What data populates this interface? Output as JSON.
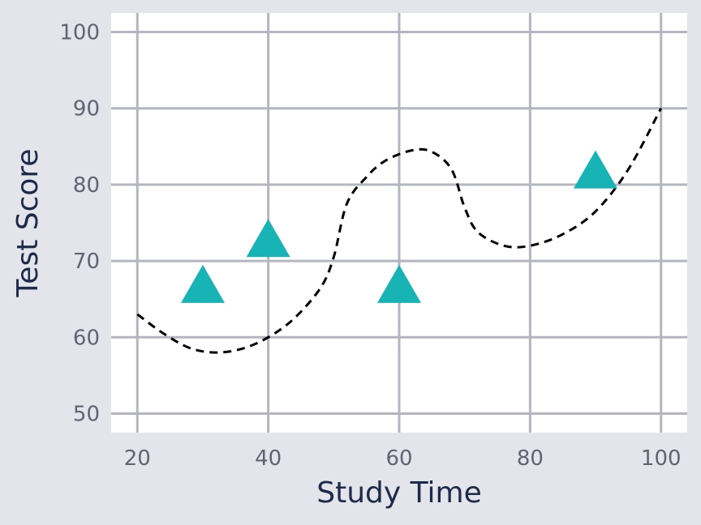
{
  "chart_data": {
    "type": "scatter",
    "title": "",
    "xlabel": "Study Time",
    "ylabel": "Test Score",
    "xlim": [
      16,
      104
    ],
    "ylim": [
      47.5,
      102.5
    ],
    "xticks": [
      20,
      40,
      60,
      80,
      100
    ],
    "yticks": [
      50,
      60,
      70,
      80,
      90,
      100
    ],
    "grid": true,
    "legend": "none",
    "series": [
      {
        "marker": "triangle",
        "color": "#17b3b5",
        "points": [
          {
            "x": 30,
            "y": 66.5
          },
          {
            "x": 40,
            "y": 72.5
          },
          {
            "x": 60,
            "y": 66.5
          },
          {
            "x": 90,
            "y": 81.5
          }
        ]
      }
    ],
    "curve": {
      "style": "dashed",
      "color": "#000000",
      "points": [
        {
          "x": 20,
          "y": 63
        },
        {
          "x": 24,
          "y": 60.5
        },
        {
          "x": 28,
          "y": 58.6
        },
        {
          "x": 32,
          "y": 58
        },
        {
          "x": 36,
          "y": 58.5
        },
        {
          "x": 40,
          "y": 60
        },
        {
          "x": 44,
          "y": 62.5
        },
        {
          "x": 48,
          "y": 66.5
        },
        {
          "x": 50,
          "y": 70.5
        },
        {
          "x": 52,
          "y": 77.5
        },
        {
          "x": 55,
          "y": 81
        },
        {
          "x": 58,
          "y": 83.2
        },
        {
          "x": 62,
          "y": 84.5
        },
        {
          "x": 65,
          "y": 84.3
        },
        {
          "x": 68,
          "y": 82
        },
        {
          "x": 70,
          "y": 77
        },
        {
          "x": 72,
          "y": 73.8
        },
        {
          "x": 76,
          "y": 72
        },
        {
          "x": 80,
          "y": 72
        },
        {
          "x": 85,
          "y": 73.5
        },
        {
          "x": 90,
          "y": 76.5
        },
        {
          "x": 95,
          "y": 82
        },
        {
          "x": 100,
          "y": 90
        }
      ]
    }
  }
}
